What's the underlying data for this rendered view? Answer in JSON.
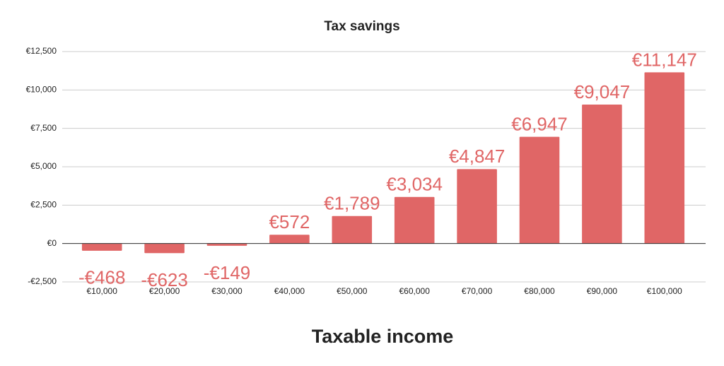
{
  "chart_data": {
    "type": "bar",
    "title": "Tax savings",
    "x_label": "Taxable income",
    "categories": [
      "€10,000",
      "€20,000",
      "€30,000",
      "€40,000",
      "€50,000",
      "€60,000",
      "€70,000",
      "€80,000",
      "€90,000",
      "€100,000"
    ],
    "values": [
      -468,
      -623,
      -149,
      572,
      1789,
      3034,
      4847,
      6947,
      9047,
      11147
    ],
    "value_labels": [
      "-€468",
      "-€623",
      "-€149",
      "€572",
      "€1,789",
      "€3,034",
      "€4,847",
      "€6,947",
      "€9,047",
      "€11,147"
    ],
    "color": "#e06666",
    "ylim": [
      -2500,
      12500
    ],
    "yticks": [
      {
        "value": -2500,
        "label": "-€2,500"
      },
      {
        "value": 0,
        "label": "€0"
      },
      {
        "value": 2500,
        "label": "€2,500"
      },
      {
        "value": 5000,
        "label": "€5,000"
      },
      {
        "value": 7500,
        "label": "€7,500"
      },
      {
        "value": 10000,
        "label": "€10,000"
      },
      {
        "value": 12500,
        "label": "€12,500"
      }
    ],
    "grid": true
  }
}
